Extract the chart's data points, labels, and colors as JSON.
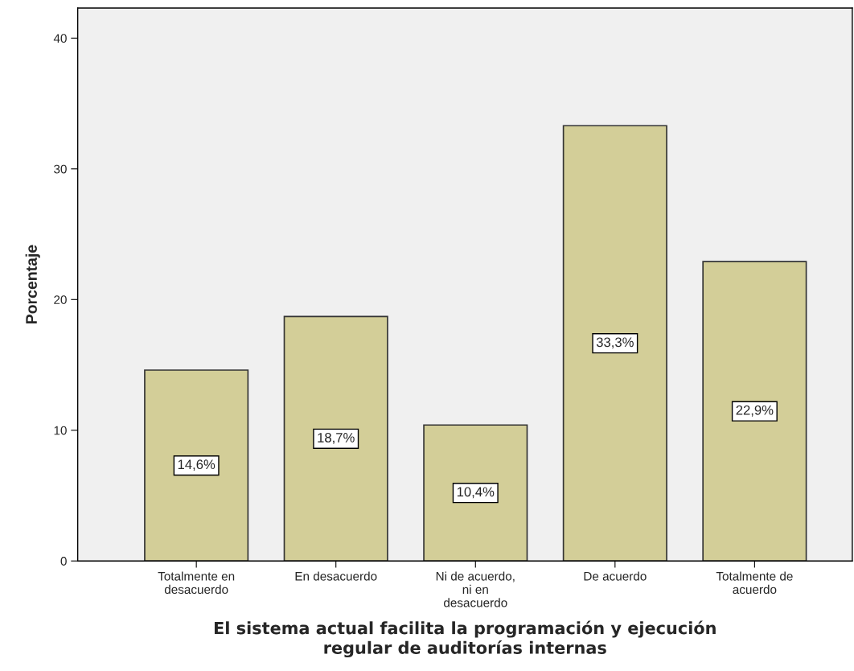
{
  "chart_data": {
    "type": "bar",
    "xlabel": "El sistema actual facilita la programación y ejecución\nregular de auditorías internas",
    "ylabel": "Porcentaje",
    "categories": [
      "Totalmente en\ndesacuerdo",
      "En desacuerdo",
      "Ni de acuerdo,\nni en\ndesacuerdo",
      "De acuerdo",
      "Totalmente de\nacuerdo"
    ],
    "values": [
      14.6,
      18.7,
      10.4,
      33.3,
      22.9
    ],
    "value_labels": [
      "14,6%",
      "18,7%",
      "10,4%",
      "33,3%",
      "22,9%"
    ],
    "color": "#d3ce98",
    "ylim": [
      0,
      42.3
    ],
    "yticks": [
      0,
      10,
      20,
      30,
      40
    ],
    "grid": false
  }
}
